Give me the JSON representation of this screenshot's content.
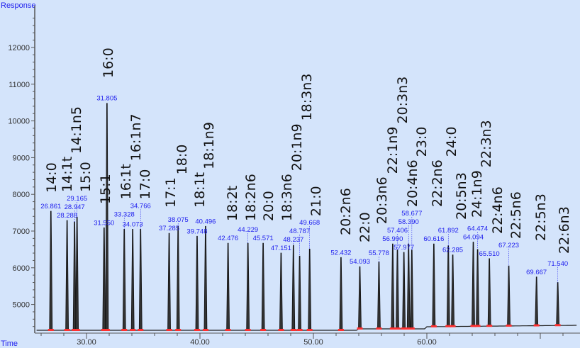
{
  "chart_data": {
    "type": "line",
    "subtype": "chromatogram",
    "ylabel": "Response",
    "xlabel": "Time",
    "xlim": [
      25.5,
      73.5
    ],
    "ylim": [
      4300,
      13000
    ],
    "x_ticks": [
      "30.00",
      "40.00",
      "50.00",
      "60.00"
    ],
    "y_ticks": [
      "5000",
      "6000",
      "7000",
      "8000",
      "9000",
      "10000",
      "11000",
      "12000"
    ],
    "grid": false,
    "colors": {
      "background": "#d4e4fb",
      "trace": "#111111",
      "rt_label": "#2020ee",
      "integration_mark": "#ff3030"
    },
    "peaks": [
      {
        "rt": "26.861",
        "height": 7540
      },
      {
        "rt": "28.288",
        "height": 7290
      },
      {
        "rt": "28.947",
        "height": 7250
      },
      {
        "rt": "29.165",
        "height": 7380
      },
      {
        "rt": "31.550",
        "height": 7090
      },
      {
        "rt": "31.805",
        "height": 10480
      },
      {
        "rt": "33.328",
        "height": 7050
      },
      {
        "rt": "34.073",
        "height": 7050
      },
      {
        "rt": "34.766",
        "height": 7050
      },
      {
        "rt": "37.285",
        "height": 6940
      },
      {
        "rt": "38.075",
        "height": 7130
      },
      {
        "rt": "39.748",
        "height": 6860
      },
      {
        "rt": "40.496",
        "height": 7130
      },
      {
        "rt": "42.476",
        "height": 6670
      },
      {
        "rt": "44.229",
        "height": 6670
      },
      {
        "rt": "45.571",
        "height": 6670
      },
      {
        "rt": "47.151",
        "height": 6400
      },
      {
        "rt": "48.237",
        "height": 6610
      },
      {
        "rt": "48.787",
        "height": 6320
      },
      {
        "rt": "49.668",
        "height": 6510
      },
      {
        "rt": "52.432",
        "height": 6280
      },
      {
        "rt": "54.093",
        "height": 6030
      },
      {
        "rt": "55.778",
        "height": 6160
      },
      {
        "rt": "56.990",
        "height": 6650
      },
      {
        "rt": "57.406",
        "height": 6480
      },
      {
        "rt": "57.977",
        "height": 6420
      },
      {
        "rt": "58.390",
        "height": 6650
      },
      {
        "rt": "58.677",
        "height": 6480
      },
      {
        "rt": "60.616",
        "height": 6650
      },
      {
        "rt": "61.892",
        "height": 6600
      },
      {
        "rt": "62.285",
        "height": 6350
      },
      {
        "rt": "64.094",
        "height": 6700
      },
      {
        "rt": "64.474",
        "height": 6500
      },
      {
        "rt": "65.510",
        "height": 6250
      },
      {
        "rt": "67.223",
        "height": 6050
      },
      {
        "rt": "69.667",
        "height": 5750
      },
      {
        "rt": "71.540",
        "height": 5600
      }
    ],
    "compound_labels": [
      "14:0",
      "14:1t",
      "14:1n5",
      "15:0",
      "15:1",
      "16:0",
      "16:1t",
      "16:1n7",
      "17:0",
      "17:1",
      "18:0",
      "18:1t",
      "18:1n9",
      "18:2t",
      "18:2n6",
      "20:0",
      "18:3n6",
      "20:1n9",
      "18:3n3",
      "21:0",
      "20:2n6",
      "22:0",
      "20:3n6",
      "22:1n9",
      "20:3n3",
      "20:4n6",
      "23:0",
      "22:2n6",
      "24:0",
      "20:5n3",
      "24:1n9",
      "22:3n3",
      "22:4n6",
      "22:5n6",
      "22:5n3",
      "22:6n3"
    ]
  }
}
